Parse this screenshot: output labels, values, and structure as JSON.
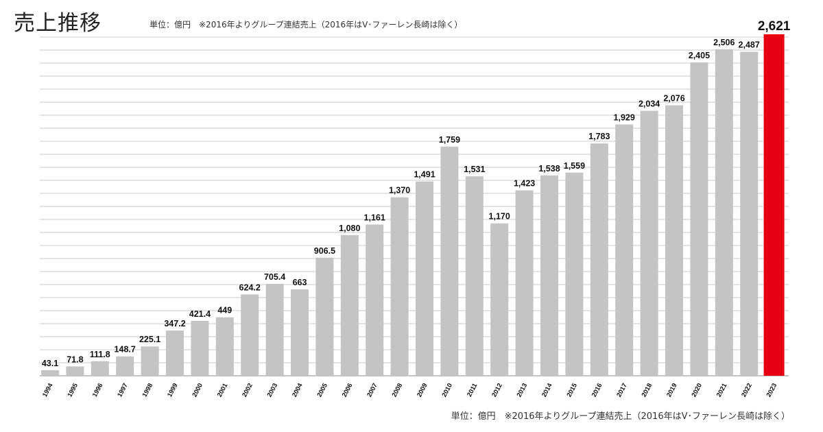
{
  "header": {
    "title": "売上推移",
    "subtitle": "単位：億円　※2016年よりグループ連結売上（2016年はV･ファーレン長崎は除く）"
  },
  "footer": {
    "note": "単位：億円　※2016年よりグループ連結売上（2016年はV･ファーレン長崎は除く）"
  },
  "colors": {
    "bar": "#c4c4c4",
    "highlight": "#e60012",
    "gridline": "#c8c8c8",
    "text": "#111111"
  },
  "chart_data": {
    "type": "bar",
    "title": "売上推移",
    "xlabel": "",
    "ylabel": "単位：億円",
    "ylim": [
      0,
      2621
    ],
    "grid": true,
    "highlight_category": "2023",
    "categories": [
      "1994",
      "1995",
      "1996",
      "1997",
      "1998",
      "1999",
      "2000",
      "2001",
      "2002",
      "2003",
      "2004",
      "2005",
      "2006",
      "2007",
      "2008",
      "2009",
      "2010",
      "2011",
      "2012",
      "2013",
      "2014",
      "2015",
      "2016",
      "2017",
      "2018",
      "2019",
      "2020",
      "2021",
      "2022",
      "2023"
    ],
    "values": [
      43.1,
      71.8,
      111.8,
      148.7,
      225.1,
      347.2,
      421.4,
      449,
      624.2,
      705.4,
      663,
      906.5,
      1080,
      1161,
      1370,
      1491,
      1759,
      1531,
      1170,
      1423,
      1538,
      1559,
      1783,
      1929,
      2034,
      2076,
      2405,
      2506,
      2487,
      2621
    ],
    "labels": [
      "43.1",
      "71.8",
      "111.8",
      "148.7",
      "225.1",
      "347.2",
      "421.4",
      "449",
      "624.2",
      "705.4",
      "663",
      "906.5",
      "1,080",
      "1,161",
      "1,370",
      "1,491",
      "1,759",
      "1,531",
      "1,170",
      "1,423",
      "1,538",
      "1,559",
      "1,783",
      "1,929",
      "2,034",
      "2,076",
      "2,405",
      "2,506",
      "2,487",
      "2,621"
    ]
  }
}
